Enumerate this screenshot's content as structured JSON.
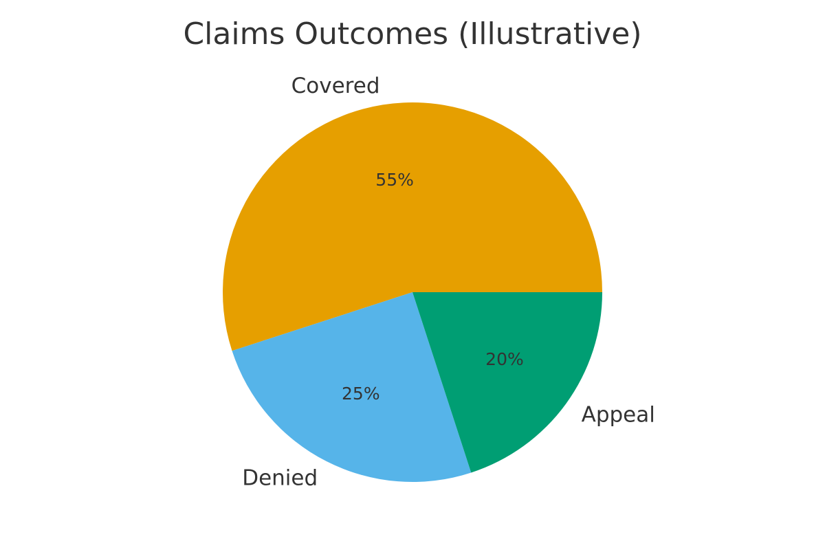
{
  "chart_data": {
    "type": "pie",
    "title": "Claims Outcomes (Illustrative)",
    "categories": [
      "Covered",
      "Denied",
      "Appeal"
    ],
    "values": [
      55,
      25,
      20
    ],
    "value_labels": [
      "55%",
      "25%",
      "20%"
    ],
    "colors": [
      "#E69F00",
      "#56B4E9",
      "#009E73"
    ],
    "start_angle_deg": 0,
    "direction": "counterclockwise",
    "legend": "none"
  }
}
